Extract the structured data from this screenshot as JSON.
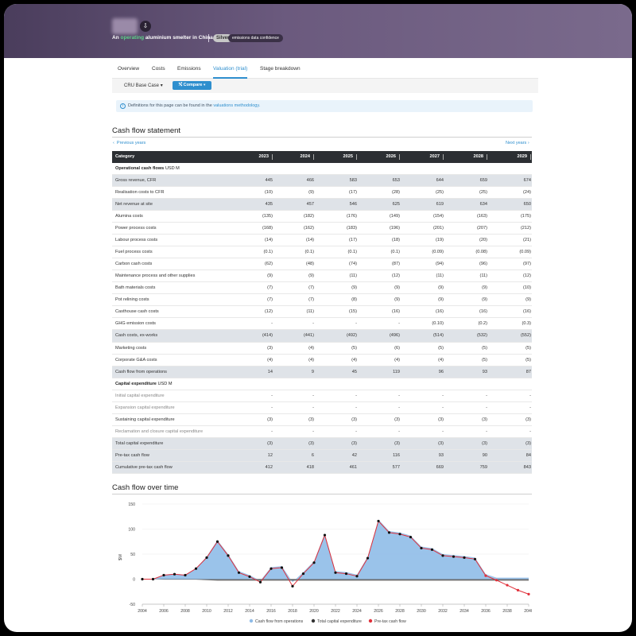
{
  "hero": {
    "title_prefix": "An",
    "status_word": "operating",
    "title_rest": "aluminium smelter in China",
    "badge": "Silver",
    "badge_caption": "emissions data confidence"
  },
  "tabs": [
    "Overview",
    "Costs",
    "Emissions",
    "Valuation (trial)",
    "Stage breakdown"
  ],
  "active_tab": "Valuation (trial)",
  "toolbar": {
    "scenario": "CRU Base Case",
    "compare": "Compare"
  },
  "info": {
    "text": "Definitions for this page can be found in the",
    "link": "valuations methodology."
  },
  "cash_flow_statement": {
    "title": "Cash flow statement",
    "prev": "Previous years",
    "next": "Next years",
    "header": [
      "Category",
      "2023",
      "2024",
      "2025",
      "2026",
      "2027",
      "2028",
      "2029"
    ],
    "rows": [
      {
        "type": "section",
        "label": "Operational cash flows",
        "unit": "USD M",
        "values": []
      },
      {
        "type": "shaded",
        "label": "Gross revenue, CFR",
        "values": [
          "445",
          "466",
          "583",
          "653",
          "644",
          "659",
          "674"
        ]
      },
      {
        "type": "normal",
        "label": "Realisation costs to CFR",
        "values": [
          "(10)",
          "(9)",
          "(17)",
          "(28)",
          "(25)",
          "(25)",
          "(24)"
        ]
      },
      {
        "type": "shaded",
        "label": "Net revenue at site",
        "values": [
          "435",
          "457",
          "546",
          "625",
          "619",
          "634",
          "650"
        ]
      },
      {
        "type": "normal",
        "label": "Alumina costs",
        "values": [
          "(135)",
          "(182)",
          "(176)",
          "(149)",
          "(154)",
          "(163)",
          "(175)"
        ]
      },
      {
        "type": "normal",
        "label": "Power process costs",
        "values": [
          "(168)",
          "(162)",
          "(183)",
          "(196)",
          "(201)",
          "(207)",
          "(212)"
        ]
      },
      {
        "type": "normal",
        "label": "Labour process costs",
        "values": [
          "(14)",
          "(14)",
          "(17)",
          "(18)",
          "(19)",
          "(20)",
          "(21)"
        ]
      },
      {
        "type": "normal",
        "label": "Fuel process costs",
        "values": [
          "(0.1)",
          "(0.1)",
          "(0.1)",
          "(0.1)",
          "(0.09)",
          "(0.08)",
          "(0.09)"
        ]
      },
      {
        "type": "normal",
        "label": "Carbon cash costs",
        "values": [
          "(62)",
          "(48)",
          "(74)",
          "(87)",
          "(94)",
          "(96)",
          "(97)"
        ]
      },
      {
        "type": "normal",
        "label": "Maintenance process and other supplies",
        "values": [
          "(9)",
          "(9)",
          "(11)",
          "(12)",
          "(11)",
          "(11)",
          "(12)"
        ]
      },
      {
        "type": "normal",
        "label": "Bath materials costs",
        "values": [
          "(7)",
          "(7)",
          "(9)",
          "(9)",
          "(9)",
          "(9)",
          "(10)"
        ]
      },
      {
        "type": "normal",
        "label": "Pot relining costs",
        "values": [
          "(7)",
          "(7)",
          "(8)",
          "(9)",
          "(9)",
          "(9)",
          "(9)"
        ]
      },
      {
        "type": "normal",
        "label": "Casthouse cash costs",
        "values": [
          "(12)",
          "(11)",
          "(15)",
          "(16)",
          "(16)",
          "(16)",
          "(16)"
        ]
      },
      {
        "type": "normal",
        "label": "GHG emission costs",
        "values": [
          "-",
          "-",
          "-",
          "-",
          "(0.10)",
          "(0.2)",
          "(0.3)"
        ]
      },
      {
        "type": "shaded",
        "label": "Cash costs, ex-works",
        "values": [
          "(414)",
          "(441)",
          "(492)",
          "(496)",
          "(514)",
          "(532)",
          "(552)"
        ]
      },
      {
        "type": "normal",
        "label": "Marketing costs",
        "values": [
          "(3)",
          "(4)",
          "(5)",
          "(6)",
          "(5)",
          "(5)",
          "(5)"
        ]
      },
      {
        "type": "normal",
        "label": "Corporate G&A costs",
        "values": [
          "(4)",
          "(4)",
          "(4)",
          "(4)",
          "(4)",
          "(5)",
          "(5)"
        ]
      },
      {
        "type": "shaded",
        "label": "Cash flow from operations",
        "values": [
          "14",
          "9",
          "45",
          "119",
          "96",
          "93",
          "87"
        ]
      },
      {
        "type": "section",
        "label": "Capital expenditure",
        "unit": "USD M",
        "values": []
      },
      {
        "type": "muted",
        "label": "Initial capital expenditure",
        "values": [
          "-",
          "-",
          "-",
          "-",
          "-",
          "-",
          "-"
        ]
      },
      {
        "type": "muted",
        "label": "Expansion capital expenditure",
        "values": [
          "-",
          "-",
          "-",
          "-",
          "-",
          "-",
          "-"
        ]
      },
      {
        "type": "normal",
        "label": "Sustaining capital expenditure",
        "values": [
          "(3)",
          "(3)",
          "(3)",
          "(3)",
          "(3)",
          "(3)",
          "(3)"
        ]
      },
      {
        "type": "muted",
        "label": "Reclamation and closure capital expenditure",
        "values": [
          "-",
          "-",
          "-",
          "-",
          "-",
          "-",
          "-"
        ]
      },
      {
        "type": "shaded",
        "label": "Total capital expenditure",
        "values": [
          "(3)",
          "(3)",
          "(3)",
          "(3)",
          "(3)",
          "(3)",
          "(3)"
        ]
      },
      {
        "type": "shaded",
        "label": "Pre-tax cash flow",
        "values": [
          "12",
          "6",
          "42",
          "116",
          "93",
          "90",
          "84"
        ]
      },
      {
        "type": "shaded",
        "label": "Cumulative pre-tax cash flow",
        "values": [
          "412",
          "418",
          "461",
          "577",
          "669",
          "759",
          "843"
        ]
      }
    ]
  },
  "cash_flow_chart_title": "Cash flow over time",
  "chart_data": {
    "type": "area",
    "title": "Cash flow over time",
    "ylabel": "$M",
    "ylim": [
      -50,
      150
    ],
    "yticks": [
      150,
      100,
      50,
      0,
      -50
    ],
    "xticks": [
      2004,
      2006,
      2008,
      2010,
      2012,
      2014,
      2016,
      2018,
      2020,
      2022,
      2024,
      2026,
      2028,
      2030,
      2032,
      2034,
      2036,
      2038,
      2040
    ],
    "x": [
      2004,
      2005,
      2006,
      2007,
      2008,
      2009,
      2010,
      2011,
      2012,
      2013,
      2014,
      2015,
      2016,
      2017,
      2018,
      2019,
      2020,
      2021,
      2022,
      2023,
      2024,
      2025,
      2026,
      2027,
      2028,
      2029,
      2030,
      2031,
      2032,
      2033,
      2034,
      2035,
      2036,
      2037,
      2038,
      2039,
      2040
    ],
    "series": [
      {
        "name": "Cash flow from operations",
        "color": "#8fbce8",
        "values": [
          0,
          0,
          9,
          11,
          9,
          22,
          45,
          78,
          50,
          16,
          8,
          -3,
          24,
          26,
          -6,
          14,
          36,
          91,
          16,
          14,
          9,
          45,
          119,
          96,
          93,
          87,
          65,
          62,
          50,
          48,
          46,
          43,
          10,
          3,
          3,
          3,
          3
        ]
      },
      {
        "name": "Total capital expenditure",
        "color": "#333333",
        "values": [
          0,
          0,
          -1,
          -1,
          -1,
          -1,
          -2,
          -3,
          -3,
          -3,
          -3,
          -3,
          -3,
          -3,
          -3,
          -3,
          -3,
          -3,
          -3,
          -3,
          -3,
          -3,
          -3,
          -3,
          -3,
          -3,
          -3,
          -3,
          -3,
          -3,
          -3,
          -3,
          -3,
          -3,
          -3,
          -3,
          -3
        ]
      },
      {
        "name": "Pre-tax cash flow",
        "color": "#e0303a",
        "values": [
          0,
          0,
          8,
          10,
          8,
          21,
          43,
          75,
          47,
          13,
          5,
          -6,
          21,
          23,
          -14,
          11,
          33,
          88,
          13,
          11,
          6,
          42,
          116,
          93,
          90,
          84,
          62,
          59,
          47,
          45,
          43,
          40,
          7,
          -2,
          -12,
          -22,
          -30
        ]
      }
    ]
  }
}
